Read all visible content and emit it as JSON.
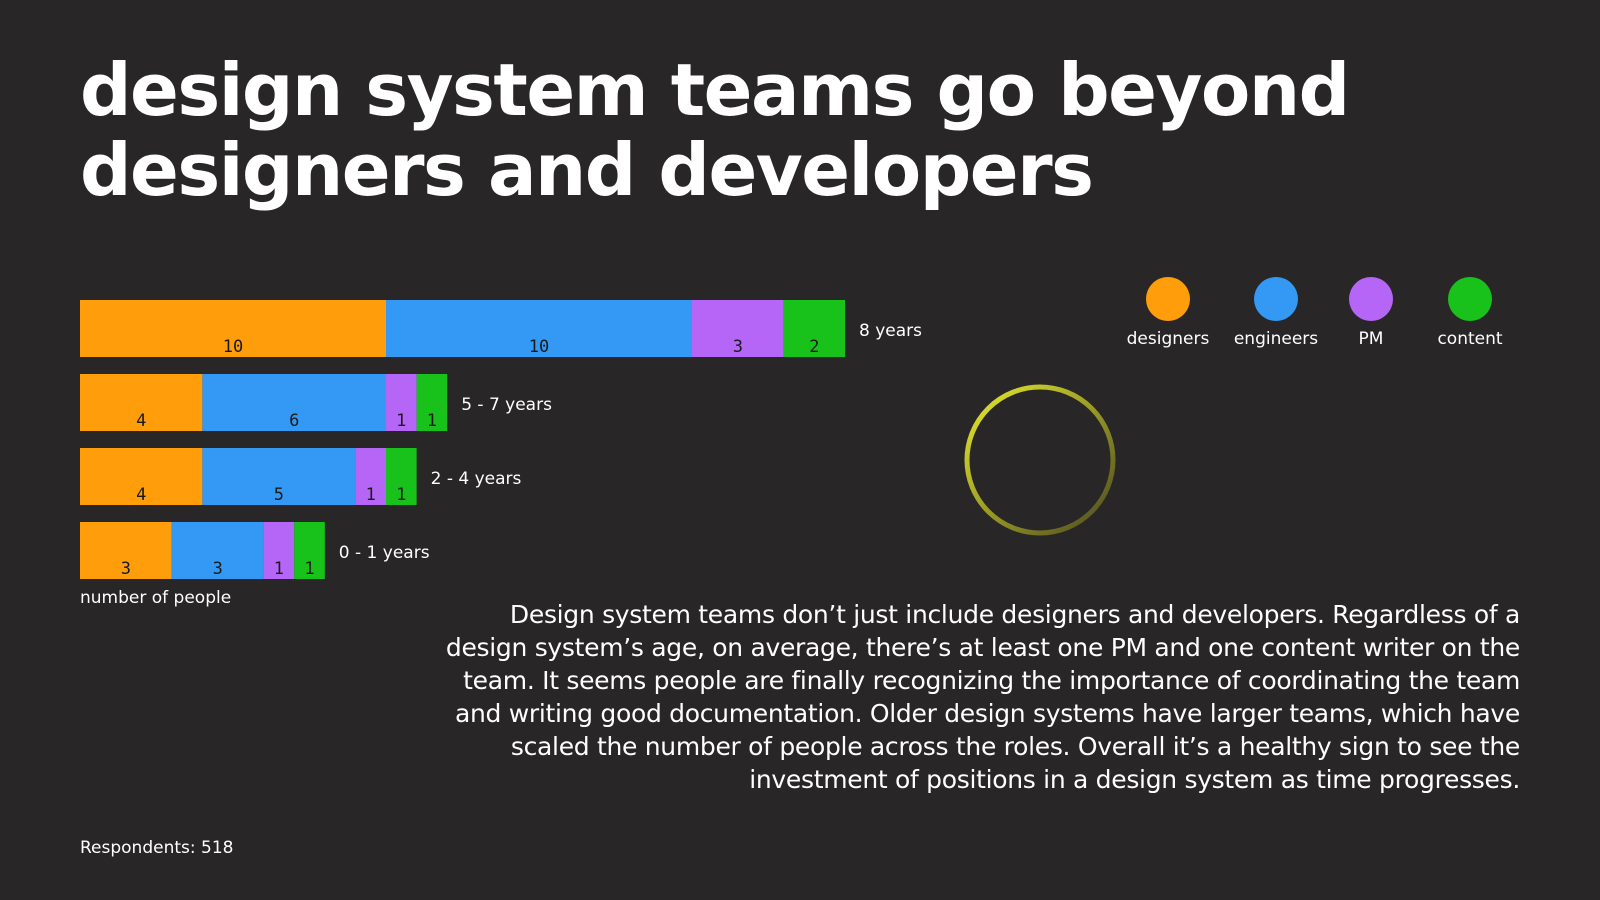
{
  "title": "design system teams go beyond designers and developers",
  "chart_data": {
    "type": "bar",
    "orientation": "horizontal",
    "stacked": true,
    "categories": [
      "8 years",
      "5 - 7 years",
      "2 - 4 years",
      "0 - 1 years"
    ],
    "series": [
      {
        "name": "designers",
        "values": [
          10,
          4,
          4,
          3
        ]
      },
      {
        "name": "engineers",
        "values": [
          10,
          6,
          5,
          3
        ]
      },
      {
        "name": "PM",
        "values": [
          3,
          1,
          1,
          1
        ]
      },
      {
        "name": "content",
        "values": [
          2,
          1,
          1,
          1
        ]
      }
    ],
    "value_labels": [
      [
        "10",
        "10",
        "3",
        "2"
      ],
      [
        "4",
        "6",
        "1",
        "1"
      ],
      [
        "4",
        "5",
        "1",
        "1"
      ],
      [
        "3",
        "3",
        "1",
        "1"
      ]
    ],
    "xlabel": "number of people",
    "legend_position": "top-right",
    "grid": false,
    "colors": {
      "designers": "#ff9d0b",
      "engineers": "#3399f5",
      "PM": "#b666f7",
      "content": "#18c21a"
    }
  },
  "description": "Design system teams don’t just include designers and developers. Regardless of a design system’s age, on average, there’s at least one PM and one content writer on the team. It seems people are finally recognizing the importance of coordinating the team and writing good documentation. Older design systems have larger teams, which have scaled the number of people across the roles. Overall it’s a healthy sign to see the investment of positions in a design system as time progresses.",
  "respondents": "Respondents: 518",
  "decoration": {
    "ring_icon": "loading-ring-icon",
    "ring_color_start": "#e8ec2c",
    "ring_color_end": "#4a4820"
  }
}
